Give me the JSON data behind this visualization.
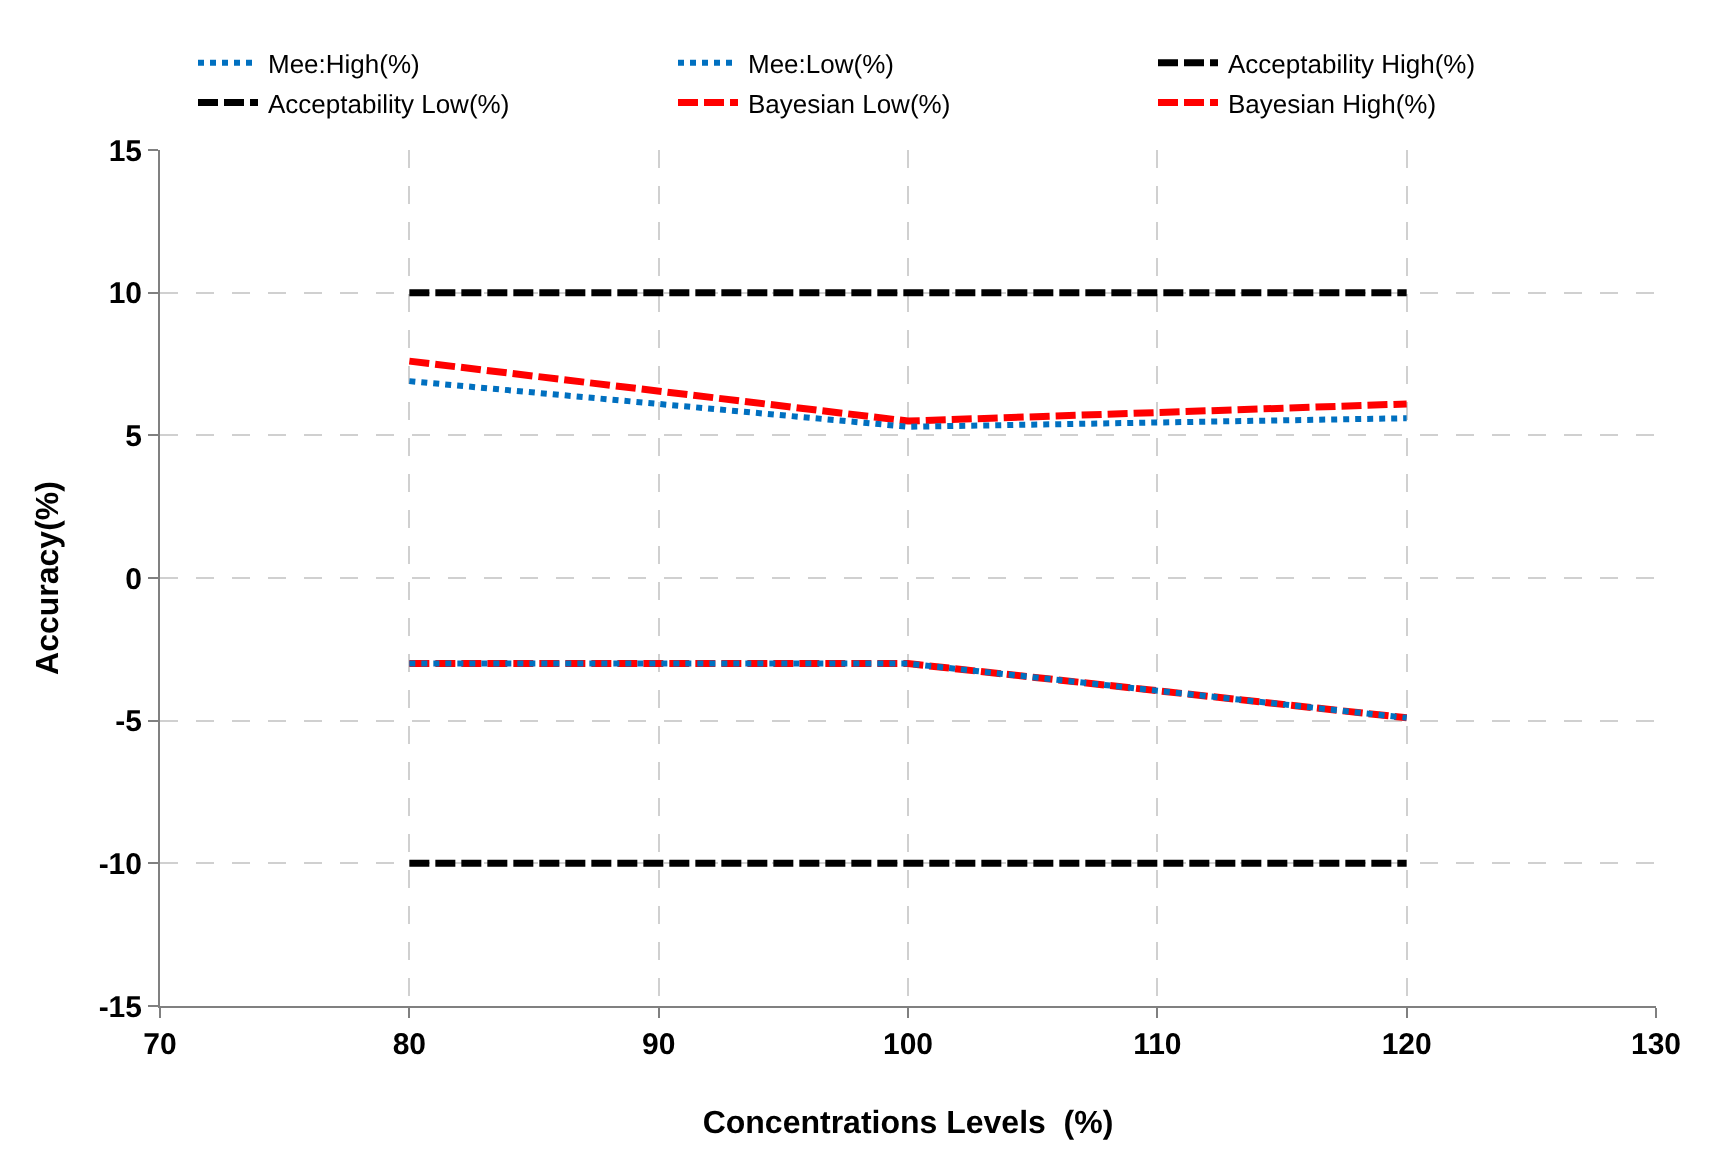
{
  "chart_data": {
    "type": "line",
    "xlabel": "Concentrations Levels  (%)",
    "ylabel": "Accuracy(%)",
    "x": [
      80,
      100,
      120
    ],
    "xlim": [
      70,
      130
    ],
    "xticks": [
      70,
      80,
      90,
      100,
      110,
      120,
      130
    ],
    "ylim": [
      -15,
      15
    ],
    "yticks": [
      -15,
      -10,
      -5,
      0,
      5,
      10,
      15
    ],
    "grid": true,
    "legend": "top",
    "marker": "none",
    "series": [
      {
        "name": "Mee:High(%)",
        "color": "#0070c0",
        "line_style": "dotted",
        "values": [
          6.9,
          5.3,
          5.6
        ]
      },
      {
        "name": "Mee:Low(%)",
        "color": "#0070c0",
        "line_style": "dotted",
        "values": [
          -3,
          -3,
          -4.9
        ]
      },
      {
        "name": "Acceptability High(%)",
        "color": "#000000",
        "line_style": "dashed",
        "values": [
          10,
          10,
          10
        ]
      },
      {
        "name": "Acceptability Low(%)",
        "color": "#000000",
        "line_style": "dashed",
        "values": [
          -10,
          -10,
          -10
        ]
      },
      {
        "name": "Bayesian Low(%)",
        "color": "#ff0000",
        "line_style": "dashed",
        "values": [
          -3,
          -3,
          -4.9
        ]
      },
      {
        "name": "Bayesian High(%)",
        "color": "#ff0000",
        "line_style": "dashed",
        "values": [
          7.6,
          5.5,
          6.1
        ]
      }
    ]
  }
}
